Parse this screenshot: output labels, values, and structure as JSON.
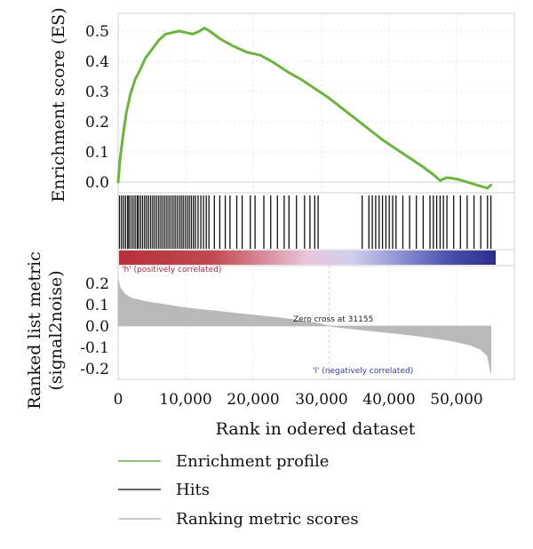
{
  "chart_data": {
    "type": "line",
    "panels": {
      "enrichment": {
        "ylabel": "Enrichment score (ES)",
        "yticks": [
          "0.5",
          "0.4",
          "0.3",
          "0.2",
          "0.1",
          "0.0"
        ],
        "ylim": [
          -0.03,
          0.53
        ],
        "series": {
          "color": "#6db33f",
          "x": [
            0,
            300,
            700,
            1200,
            1800,
            2500,
            3200,
            4000,
            5000,
            6000,
            7000,
            8000,
            9000,
            10000,
            11000,
            12000,
            12700,
            13500,
            15000,
            17000,
            19000,
            21000,
            23000,
            25000,
            27000,
            29000,
            31000,
            33000,
            35000,
            37000,
            39000,
            41000,
            43000,
            45000,
            46500,
            47500,
            48500,
            50000,
            51500,
            53000,
            54500,
            55000
          ],
          "y": [
            0.0,
            0.08,
            0.15,
            0.23,
            0.29,
            0.34,
            0.37,
            0.41,
            0.44,
            0.47,
            0.49,
            0.495,
            0.5,
            0.495,
            0.49,
            0.5,
            0.51,
            0.5,
            0.475,
            0.45,
            0.43,
            0.42,
            0.395,
            0.365,
            0.34,
            0.31,
            0.28,
            0.245,
            0.21,
            0.175,
            0.14,
            0.11,
            0.08,
            0.05,
            0.025,
            0.005,
            0.015,
            0.01,
            0.0,
            -0.01,
            -0.02,
            -0.01
          ]
        }
      },
      "hits": {
        "color": "#111111",
        "positions": [
          200,
          500,
          800,
          1100,
          1400,
          1600,
          1900,
          2200,
          2500,
          2800,
          3000,
          3300,
          3600,
          3900,
          4200,
          4500,
          4800,
          5100,
          5400,
          5700,
          6000,
          6300,
          6600,
          6900,
          7200,
          7500,
          7800,
          8100,
          8400,
          8700,
          9000,
          9300,
          9600,
          9900,
          10200,
          10500,
          10800,
          11100,
          11400,
          11800,
          12200,
          12600,
          13000,
          13400,
          14200,
          15000,
          15800,
          16500,
          17500,
          18300,
          19500,
          20200,
          21500,
          22500,
          23500,
          24500,
          25200,
          26300,
          27500,
          28300,
          29000,
          29500,
          36000,
          37000,
          37500,
          38000,
          38500,
          39000,
          39500,
          40000,
          40500,
          41000,
          42000,
          43000,
          44000,
          45000,
          46000,
          46500,
          47000,
          47500,
          48000,
          48500,
          49500,
          50500,
          51500,
          52500,
          53500,
          54500,
          55000
        ]
      },
      "gradient": {
        "positive_label": "'h' (positively correlated)",
        "negative_label": "'l' (negatively correlated)",
        "positive_color": "#b5303a",
        "negative_color": "#2c2e8c"
      },
      "metric": {
        "ylabel_line1": "Ranked list metric",
        "ylabel_line2": "(signal2noise)",
        "yticks": [
          "0.2",
          "0.1",
          "0.0",
          "-0.1",
          "-0.2"
        ],
        "ylim": [
          -0.25,
          0.25
        ],
        "zero_cross_label": "Zero cross at 31155",
        "zero_cross": 31155,
        "color": "#b9b9b9",
        "x": [
          0,
          300,
          1000,
          2000,
          4000,
          6000,
          8000,
          10000,
          12000,
          15000,
          18000,
          21000,
          24000,
          27000,
          30000,
          31155,
          33000,
          36000,
          39000,
          42000,
          45000,
          48000,
          50000,
          52000,
          53500,
          54500,
          55000
        ],
        "y": [
          0.22,
          0.18,
          0.15,
          0.13,
          0.115,
          0.105,
          0.095,
          0.085,
          0.078,
          0.068,
          0.058,
          0.048,
          0.038,
          0.025,
          0.01,
          0.0,
          -0.008,
          -0.018,
          -0.028,
          -0.038,
          -0.05,
          -0.063,
          -0.075,
          -0.09,
          -0.11,
          -0.14,
          -0.22
        ]
      }
    },
    "xlabel": "Rank in odered dataset",
    "xticks": [
      "0",
      "10,000",
      "20,000",
      "30,000",
      "40,000",
      "50,000"
    ],
    "xlim": [
      0,
      58500
    ]
  },
  "legend": {
    "items": [
      {
        "label": "Enrichment profile",
        "color": "#6db33f"
      },
      {
        "label": "Hits",
        "color": "#333333"
      },
      {
        "label": "Ranking metric scores",
        "color": "#b9b9b9"
      }
    ]
  }
}
